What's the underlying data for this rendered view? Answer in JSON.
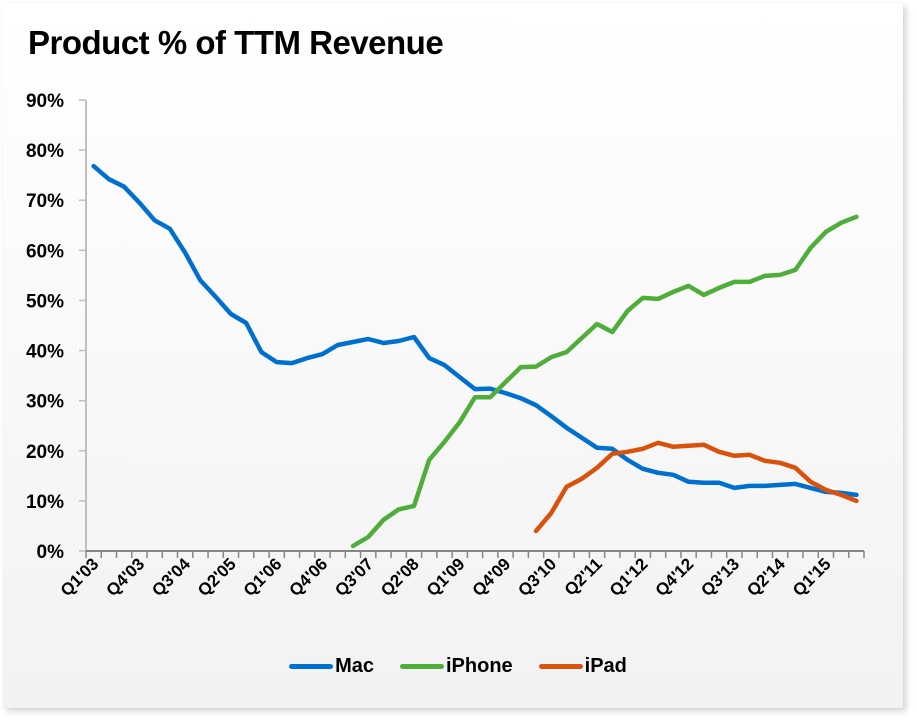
{
  "chart_data": {
    "type": "line",
    "title": "Product % of TTM Revenue",
    "xlabel": "",
    "ylabel": "",
    "ylim": [
      0,
      90
    ],
    "yticks": [
      "0%",
      "10%",
      "20%",
      "30%",
      "40%",
      "50%",
      "60%",
      "70%",
      "80%",
      "90%"
    ],
    "ytick_values": [
      0,
      10,
      20,
      30,
      40,
      50,
      60,
      70,
      80,
      90
    ],
    "grid": false,
    "legend_position": "bottom",
    "categories": [
      "Q1'03",
      "Q2'03",
      "Q3'03",
      "Q4'03",
      "Q1'04",
      "Q2'04",
      "Q3'04",
      "Q4'04",
      "Q1'05",
      "Q2'05",
      "Q3'05",
      "Q4'05",
      "Q1'06",
      "Q2'06",
      "Q3'06",
      "Q4'06",
      "Q1'07",
      "Q2'07",
      "Q3'07",
      "Q4'07",
      "Q1'08",
      "Q2'08",
      "Q3'08",
      "Q4'08",
      "Q1'09",
      "Q2'09",
      "Q3'09",
      "Q4'09",
      "Q1'10",
      "Q2'10",
      "Q3'10",
      "Q4'10",
      "Q1'11",
      "Q2'11",
      "Q3'11",
      "Q4'11",
      "Q1'12",
      "Q2'12",
      "Q3'12",
      "Q4'12",
      "Q1'13",
      "Q2'13",
      "Q3'13",
      "Q4'13",
      "Q1'14",
      "Q2'14",
      "Q3'14",
      "Q4'14",
      "Q1'15",
      "Q2'15",
      "Q3'15"
    ],
    "xtick_labels": [
      {
        "index": 0,
        "label": "Q1'03"
      },
      {
        "index": 3,
        "label": "Q4'03"
      },
      {
        "index": 6,
        "label": "Q3'04"
      },
      {
        "index": 9,
        "label": "Q2'05"
      },
      {
        "index": 12,
        "label": "Q1'06"
      },
      {
        "index": 15,
        "label": "Q4'06"
      },
      {
        "index": 18,
        "label": "Q3'07"
      },
      {
        "index": 21,
        "label": "Q2'08"
      },
      {
        "index": 24,
        "label": "Q1'09"
      },
      {
        "index": 27,
        "label": "Q4'09"
      },
      {
        "index": 30,
        "label": "Q3'10"
      },
      {
        "index": 33,
        "label": "Q2'11"
      },
      {
        "index": 36,
        "label": "Q1'12"
      },
      {
        "index": 39,
        "label": "Q4'12"
      },
      {
        "index": 42,
        "label": "Q3'13"
      },
      {
        "index": 45,
        "label": "Q2'14"
      },
      {
        "index": 48,
        "label": "Q1'15"
      }
    ],
    "series": [
      {
        "name": "Mac",
        "color": "#0070d0",
        "start_index": 0,
        "values": [
          76.8,
          74.2,
          72.7,
          69.5,
          66.0,
          64.3,
          59.5,
          54.0,
          50.7,
          47.3,
          45.5,
          39.7,
          37.7,
          37.5,
          38.5,
          39.3,
          41.1,
          41.7,
          42.3,
          41.5,
          41.9,
          42.7,
          38.5,
          37.1,
          34.7,
          32.3,
          32.4,
          31.5,
          30.5,
          29.1,
          26.9,
          24.6,
          22.6,
          20.6,
          20.4,
          18.2,
          16.4,
          15.6,
          15.2,
          13.8,
          13.6,
          13.6,
          12.6,
          13.0,
          13.0,
          13.2,
          13.4,
          12.6,
          11.8,
          11.6,
          11.2
        ]
      },
      {
        "name": "iPhone",
        "color": "#4fad3a",
        "start_index": 17,
        "values": [
          1.0,
          2.8,
          6.2,
          8.3,
          9.0,
          18.2,
          21.8,
          25.7,
          30.7,
          30.7,
          33.7,
          36.7,
          36.8,
          38.7,
          39.7,
          42.5,
          45.3,
          43.7,
          47.9,
          50.5,
          50.3,
          51.7,
          52.9,
          51.1,
          52.5,
          53.7,
          53.7,
          54.9,
          55.1,
          56.1,
          60.5,
          63.7,
          65.5,
          66.7
        ]
      },
      {
        "name": "iPad",
        "color": "#d9520c",
        "start_index": 29,
        "values": [
          4.0,
          7.6,
          12.8,
          14.4,
          16.6,
          19.4,
          19.8,
          20.4,
          21.6,
          20.8,
          21.0,
          21.2,
          19.8,
          19.0,
          19.2,
          18.0,
          17.6,
          16.6,
          13.8,
          12.2,
          11.2,
          10.0
        ]
      }
    ]
  },
  "legend": {
    "items": [
      {
        "label": "Mac",
        "color": "#0070d0"
      },
      {
        "label": "iPhone",
        "color": "#4fad3a"
      },
      {
        "label": "iPad",
        "color": "#d9520c"
      }
    ]
  }
}
